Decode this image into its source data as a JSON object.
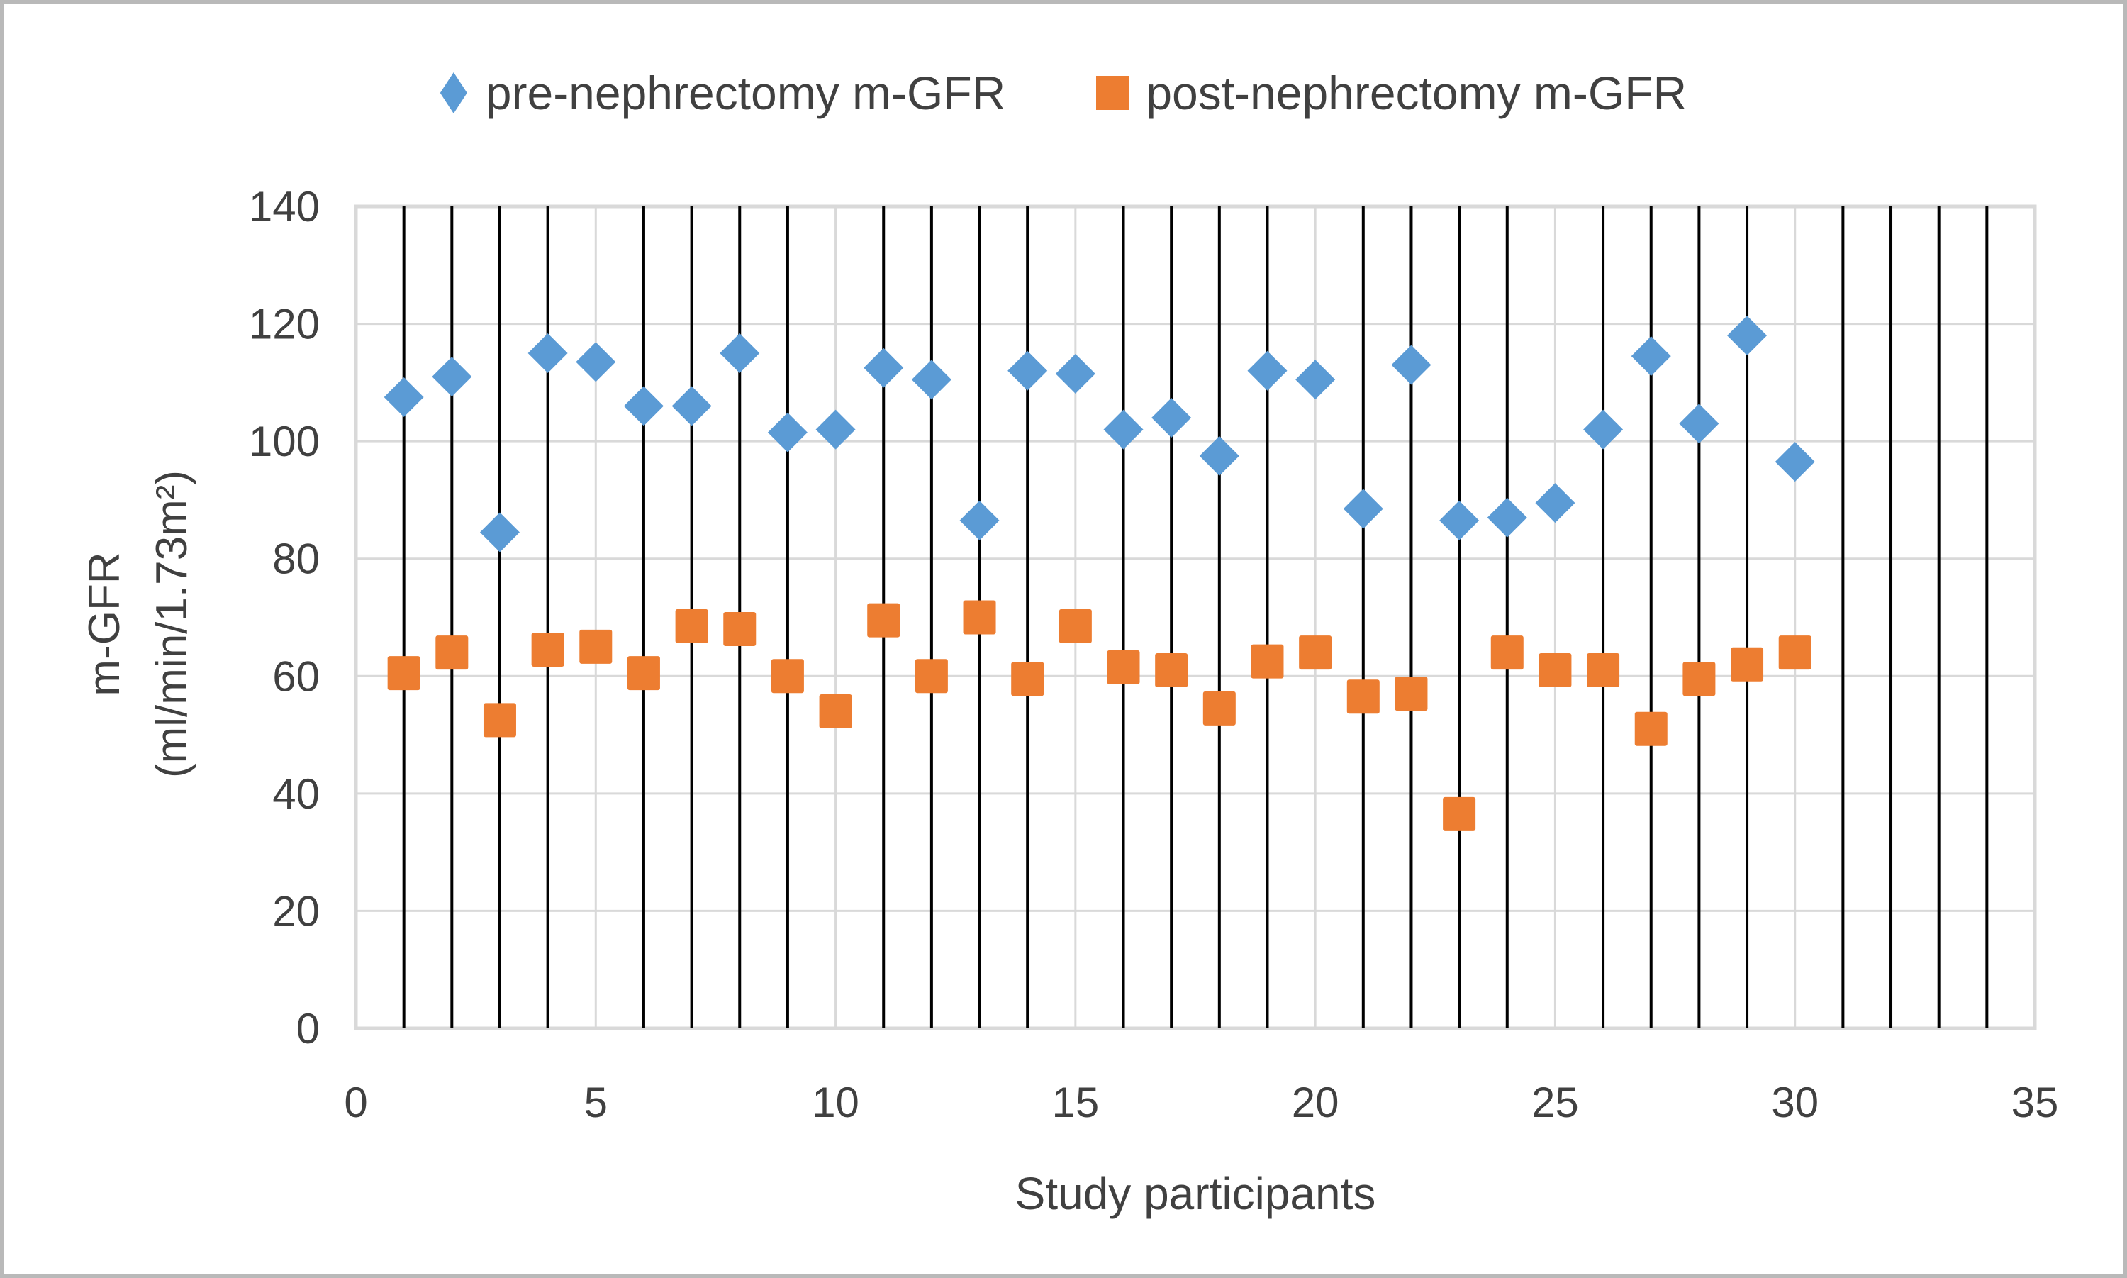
{
  "chart_data": {
    "type": "scatter",
    "title": "",
    "xlabel": "Study participants",
    "ylabel_lines": [
      "m-GFR",
      "(ml/min/1.73m²)"
    ],
    "xlim": [
      0,
      35
    ],
    "ylim": [
      0,
      140
    ],
    "x_ticks": [
      0,
      5,
      10,
      15,
      20,
      25,
      30,
      35
    ],
    "y_ticks": [
      0,
      20,
      40,
      60,
      80,
      100,
      120,
      140
    ],
    "grid": "on",
    "legend_position": "top-center",
    "x": [
      1,
      2,
      3,
      4,
      5,
      6,
      7,
      8,
      9,
      10,
      11,
      12,
      13,
      14,
      15,
      16,
      17,
      18,
      19,
      20,
      21,
      22,
      23,
      24,
      25,
      26,
      27,
      28,
      29,
      30
    ],
    "series": [
      {
        "name": "pre-nephrectomy m-GFR",
        "marker": "diamond",
        "color": "#5B9BD5",
        "values": [
          107.5,
          111,
          84.5,
          115,
          113.5,
          106,
          106,
          115,
          101.5,
          102,
          112.5,
          110.5,
          86.5,
          112,
          111.5,
          102,
          104,
          97.5,
          112,
          110.5,
          88.5,
          113,
          86.5,
          87,
          89.5,
          102,
          114.5,
          103,
          118,
          96.5
        ]
      },
      {
        "name": "post-nephrectomy m-GFR",
        "marker": "square",
        "color": "#ED7D31",
        "values": [
          60.5,
          64,
          52.5,
          64.5,
          65,
          60.5,
          68.5,
          68,
          60,
          54,
          69.5,
          60,
          70,
          59.5,
          68.5,
          61.5,
          61,
          54.5,
          62.5,
          64,
          56.5,
          57,
          36.5,
          64,
          61,
          61,
          51,
          59.5,
          62,
          64
        ]
      }
    ],
    "style": {
      "grid_color": "#D9D9D9",
      "minor_line_color": "#000000",
      "text_color": "#404040",
      "plot_left": 497,
      "plot_right": 2865,
      "plot_top": 286,
      "plot_bottom": 1445
    }
  }
}
